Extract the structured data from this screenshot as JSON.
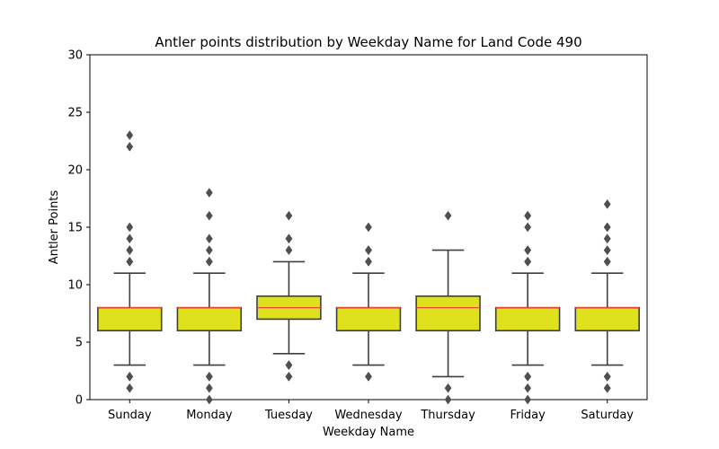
{
  "chart_data": {
    "type": "boxplot",
    "title": "Antler points distribution by Weekday Name for Land Code 490",
    "xlabel": "Weekday Name",
    "ylabel": "Antler Points",
    "ylim": [
      0,
      30
    ],
    "yticks": [
      0,
      5,
      10,
      15,
      20,
      25,
      30
    ],
    "categories": [
      "Sunday",
      "Monday",
      "Tuesday",
      "Wednesday",
      "Thursday",
      "Friday",
      "Saturday"
    ],
    "boxes": [
      {
        "category": "Sunday",
        "whisker_low": 3,
        "q1": 6,
        "median": 8,
        "q3": 8,
        "whisker_high": 11,
        "outliers": [
          1,
          2,
          2,
          12,
          12,
          13,
          13,
          14,
          15,
          22,
          23
        ]
      },
      {
        "category": "Monday",
        "whisker_low": 3,
        "q1": 6,
        "median": 8,
        "q3": 8,
        "whisker_high": 11,
        "outliers": [
          0,
          1,
          2,
          2,
          12,
          12,
          13,
          14,
          16,
          18
        ]
      },
      {
        "category": "Tuesday",
        "whisker_low": 4,
        "q1": 7,
        "median": 8,
        "q3": 9,
        "whisker_high": 12,
        "outliers": [
          2,
          2,
          3,
          3,
          13,
          14,
          14,
          16
        ]
      },
      {
        "category": "Wednesday",
        "whisker_low": 3,
        "q1": 6,
        "median": 8,
        "q3": 8,
        "whisker_high": 11,
        "outliers": [
          2,
          2,
          12,
          12,
          13,
          13,
          15
        ]
      },
      {
        "category": "Thursday",
        "whisker_low": 2,
        "q1": 6,
        "median": 8,
        "q3": 9,
        "whisker_high": 13,
        "outliers": [
          0,
          1,
          16
        ]
      },
      {
        "category": "Friday",
        "whisker_low": 3,
        "q1": 6,
        "median": 8,
        "q3": 8,
        "whisker_high": 11,
        "outliers": [
          0,
          1,
          2,
          2,
          12,
          12,
          13,
          13,
          15,
          16,
          16
        ]
      },
      {
        "category": "Saturday",
        "whisker_low": 3,
        "q1": 6,
        "median": 8,
        "q3": 8,
        "whisker_high": 11,
        "outliers": [
          1,
          1,
          2,
          2,
          12,
          12,
          13,
          13,
          14,
          14,
          15,
          15,
          17
        ]
      }
    ],
    "grid": false,
    "legend": "none",
    "colors": {
      "box_fill": "#dfe11c",
      "box_edge": "#3f3f3f",
      "median": "#e8463a",
      "whisker": "#3f3f3f",
      "outlier": "#4f4f4f"
    }
  }
}
